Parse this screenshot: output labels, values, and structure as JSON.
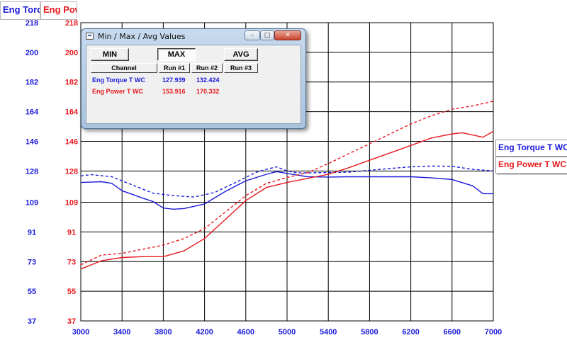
{
  "axis_headers": {
    "torque_label": "Eng Torq",
    "power_label": "Eng Powe"
  },
  "legend": {
    "torque": "Eng Torque T WC",
    "power": "Eng Power T WC"
  },
  "colors": {
    "torque": "#1a1adb",
    "power": "#e8191e",
    "grid": "#000000"
  },
  "popup": {
    "title": "Min / Max / Avg Values",
    "buttons": {
      "min": "MIN",
      "max": "MAX",
      "avg": "AVG"
    },
    "columns": [
      "Channel",
      "Run #1",
      "Run #2",
      "Run #3"
    ],
    "rows": [
      {
        "channel": "Eng Torque T WC",
        "run1": "127.939",
        "run2": "132.424",
        "run3": "",
        "color": "#1a1adb"
      },
      {
        "channel": "Eng Power T WC",
        "run1": "153.916",
        "run2": "170.332",
        "run3": "",
        "color": "#e8191e"
      }
    ]
  },
  "chart_data": {
    "type": "line",
    "x_ticks": [
      3000,
      3400,
      3800,
      4200,
      4600,
      5000,
      5400,
      5800,
      6200,
      6600,
      7000
    ],
    "xlim": [
      3000,
      7000
    ],
    "y_ticks": [
      37,
      55,
      73,
      91,
      109,
      128,
      146,
      164,
      182,
      200,
      218
    ],
    "ylim": [
      37,
      218
    ],
    "grid": true,
    "series": [
      {
        "name": "Eng Torque T WC",
        "axis": "torque",
        "color": "#1a1adb",
        "style": "solid",
        "points": [
          [
            3000,
            121.0
          ],
          [
            3200,
            121.5
          ],
          [
            3300,
            120.5
          ],
          [
            3400,
            116.0
          ],
          [
            3600,
            111.5
          ],
          [
            3700,
            109.5
          ],
          [
            3800,
            105.5
          ],
          [
            3900,
            104.8
          ],
          [
            4000,
            105.2
          ],
          [
            4200,
            108.0
          ],
          [
            4400,
            115.5
          ],
          [
            4600,
            122.0
          ],
          [
            4800,
            126.0
          ],
          [
            4900,
            127.6
          ],
          [
            5000,
            126.5
          ],
          [
            5200,
            124.5
          ],
          [
            5400,
            124.3
          ],
          [
            5600,
            124.5
          ],
          [
            5800,
            124.5
          ],
          [
            6000,
            124.5
          ],
          [
            6200,
            124.5
          ],
          [
            6400,
            123.8
          ],
          [
            6600,
            122.8
          ],
          [
            6800,
            119.0
          ],
          [
            6900,
            114.2
          ],
          [
            7000,
            114.2
          ]
        ]
      },
      {
        "name": "Eng Torque T WC",
        "axis": "torque",
        "color": "#1a1adb",
        "style": "dashed",
        "points": [
          [
            3000,
            125.0
          ],
          [
            3100,
            125.8
          ],
          [
            3300,
            124.5
          ],
          [
            3500,
            119.5
          ],
          [
            3700,
            114.5
          ],
          [
            3900,
            113.0
          ],
          [
            4100,
            112.2
          ],
          [
            4300,
            115.0
          ],
          [
            4500,
            121.0
          ],
          [
            4700,
            127.2
          ],
          [
            4800,
            129.0
          ],
          [
            4900,
            130.5
          ],
          [
            5000,
            128.0
          ],
          [
            5100,
            126.8
          ],
          [
            5200,
            126.8
          ],
          [
            5600,
            127.3
          ],
          [
            6000,
            129.5
          ],
          [
            6200,
            130.5
          ],
          [
            6400,
            131.0
          ],
          [
            6600,
            130.8
          ],
          [
            6800,
            129.0
          ],
          [
            7000,
            128.0
          ]
        ]
      },
      {
        "name": "Eng Power T WC",
        "axis": "power",
        "color": "#e8191e",
        "style": "solid",
        "points": [
          [
            3000,
            68.5
          ],
          [
            3200,
            73.5
          ],
          [
            3400,
            75.5
          ],
          [
            3600,
            76.0
          ],
          [
            3800,
            76.0
          ],
          [
            4000,
            79.5
          ],
          [
            4200,
            87.0
          ],
          [
            4400,
            98.5
          ],
          [
            4600,
            110.0
          ],
          [
            4800,
            118.0
          ],
          [
            5000,
            121.0
          ],
          [
            5200,
            123.5
          ],
          [
            5400,
            126.0
          ],
          [
            5600,
            130.0
          ],
          [
            5800,
            134.5
          ],
          [
            6000,
            139.0
          ],
          [
            6200,
            143.5
          ],
          [
            6400,
            148.0
          ],
          [
            6600,
            150.5
          ],
          [
            6700,
            151.2
          ],
          [
            6800,
            149.8
          ],
          [
            6900,
            148.5
          ],
          [
            7000,
            152.0
          ]
        ]
      },
      {
        "name": "Eng Power T WC",
        "axis": "power",
        "color": "#e8191e",
        "style": "dashed",
        "points": [
          [
            3000,
            71.0
          ],
          [
            3200,
            77.0
          ],
          [
            3400,
            78.0
          ],
          [
            3600,
            80.5
          ],
          [
            3800,
            83.0
          ],
          [
            4000,
            87.0
          ],
          [
            4200,
            93.0
          ],
          [
            4400,
            103.0
          ],
          [
            4600,
            113.0
          ],
          [
            4800,
            120.5
          ],
          [
            5000,
            124.0
          ],
          [
            5200,
            127.0
          ],
          [
            5400,
            132.5
          ],
          [
            5600,
            138.5
          ],
          [
            5800,
            144.5
          ],
          [
            6000,
            150.5
          ],
          [
            6200,
            156.5
          ],
          [
            6400,
            161.5
          ],
          [
            6600,
            165.5
          ],
          [
            6800,
            167.5
          ],
          [
            7000,
            170.3
          ]
        ]
      }
    ]
  }
}
